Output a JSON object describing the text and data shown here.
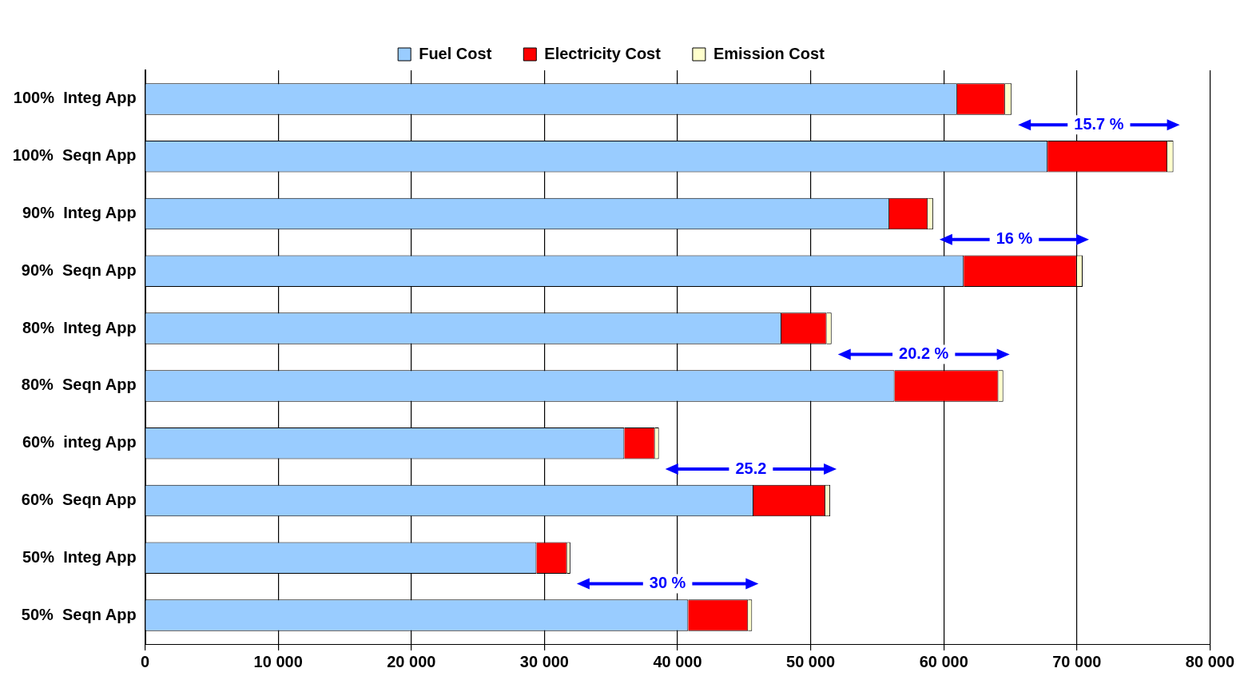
{
  "chart_data": {
    "type": "bar",
    "orientation": "horizontal",
    "stacked": true,
    "categories": [
      "100%  Integ App",
      "100%  Seqn App",
      "90%  Integ App",
      "90%  Seqn App",
      "80%  Integ App",
      "80%  Seqn App",
      "60%  integ App",
      "60%  Seqn App",
      "50%  Integ App",
      "50%  Seqn App"
    ],
    "series": [
      {
        "name": "Fuel Cost",
        "color": "#99ccff",
        "values": [
          61000,
          67800,
          55900,
          61500,
          47800,
          56300,
          36000,
          45700,
          29400,
          40800
        ]
      },
      {
        "name": "Electricity Cost",
        "color": "#ff0000",
        "values": [
          3600,
          9000,
          2900,
          8500,
          3400,
          7800,
          2300,
          5400,
          2300,
          4500
        ]
      },
      {
        "name": "Emission Cost",
        "color": "#ffffcc",
        "values": [
          500,
          450,
          400,
          430,
          370,
          370,
          300,
          370,
          250,
          300
        ]
      }
    ],
    "xlim": [
      0,
      80000
    ],
    "xticks": [
      0,
      {
        "value": 10000,
        "label": "10 000"
      },
      {
        "value": 20000,
        "label": "20 000"
      },
      {
        "value": 30000,
        "label": "30 000"
      },
      {
        "value": 40000,
        "label": "40 000"
      },
      {
        "value": 50000,
        "label": "50 000"
      },
      {
        "value": 60000,
        "label": "60 000"
      },
      {
        "value": 70000,
        "label": "70 000"
      },
      {
        "value": 80000,
        "label": "80 000"
      }
    ],
    "grid": "x",
    "legend": "top",
    "annotations": [
      "15.7 %",
      "16 %",
      "20.2 %",
      "25.2",
      "30 %"
    ]
  }
}
